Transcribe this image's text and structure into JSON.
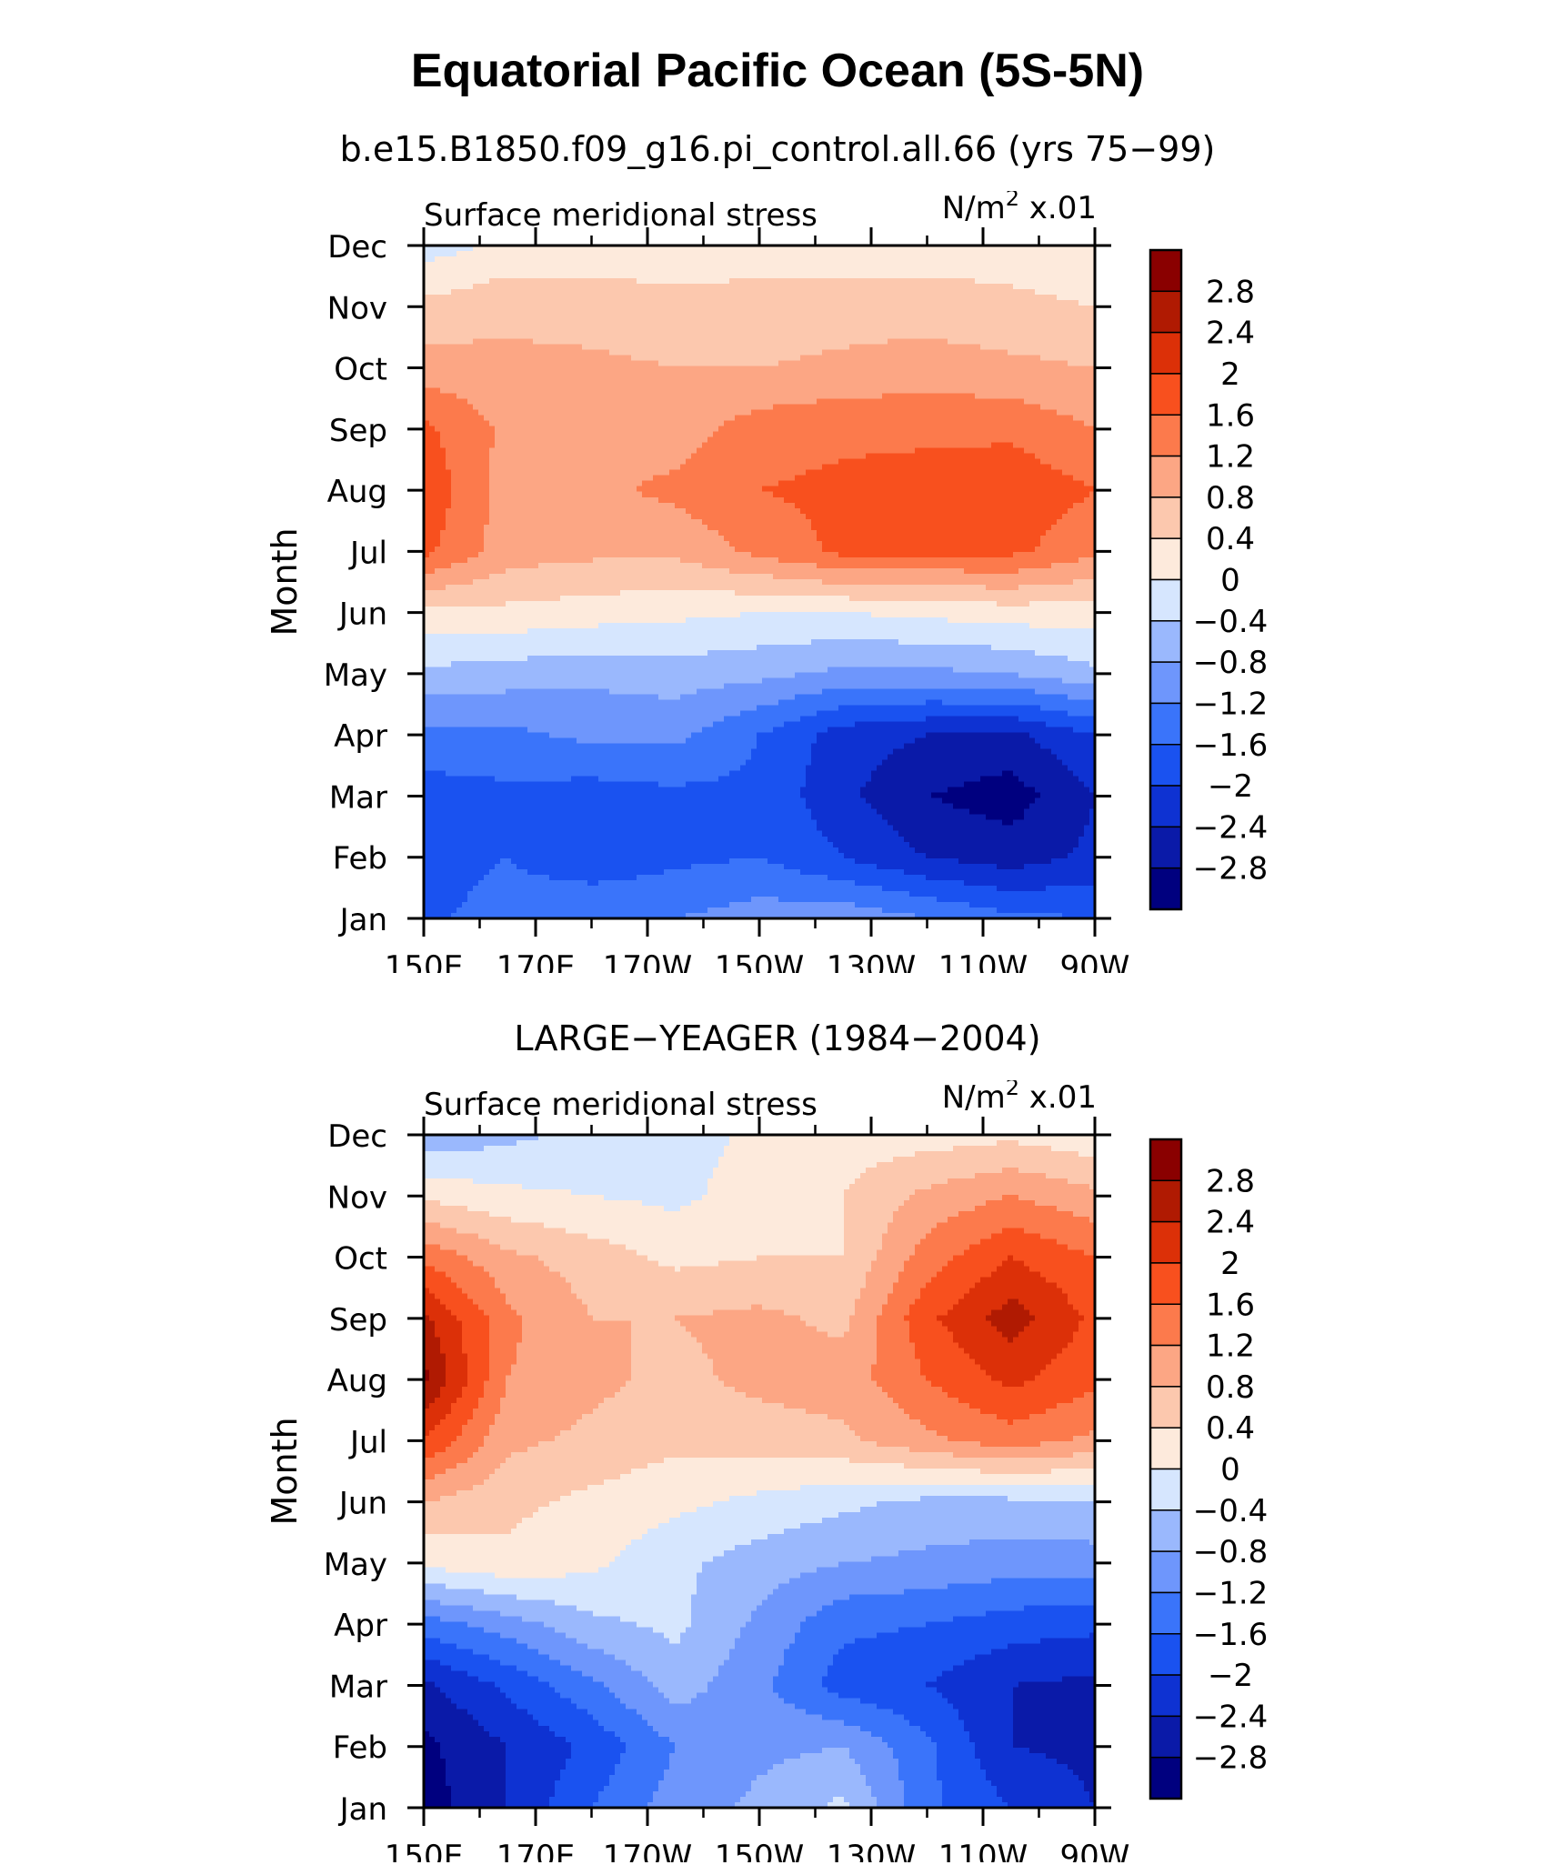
{
  "title": "Equatorial Pacific Ocean (5S-5N)",
  "chart_data": [
    {
      "type": "heatmap",
      "title": "b.e15.B1850.f09_g16.pi_control.all.66 (yrs 75−99)",
      "left_string": "Surface meridional stress",
      "units": "N/m² x.01",
      "units_base": "N/m",
      "units_sup": "2",
      "units_suffix": " x.01",
      "ylabel": "Month",
      "x_ticks": [
        "150E",
        "170E",
        "170W",
        "150W",
        "130W",
        "110W",
        "90W"
      ],
      "x_values": [
        150,
        170,
        190,
        210,
        230,
        250,
        270
      ],
      "y_ticks": [
        "Jan",
        "Feb",
        "Mar",
        "Apr",
        "May",
        "Jun",
        "Jul",
        "Aug",
        "Sep",
        "Oct",
        "Nov",
        "Dec"
      ],
      "colorbar_labels": [
        "2.8",
        "2.4",
        "2",
        "1.6",
        "1.2",
        "0.8",
        "0.4",
        "0",
        "−0.4",
        "−0.8",
        "−1.2",
        "−1.6",
        "−2",
        "−2.4",
        "−2.8"
      ],
      "levels": [
        -2.8,
        -2.4,
        -2.0,
        -1.6,
        -1.2,
        -0.8,
        -0.4,
        0,
        0.4,
        0.8,
        1.2,
        1.6,
        2.0,
        2.4,
        2.8
      ],
      "grid": [
        [
          -1.7,
          -1.4,
          -1.2,
          -1.2,
          -1.0,
          -0.9,
          -1.2,
          -1.5,
          -1.6
        ],
        [
          -1.8,
          -1.6,
          -1.9,
          -1.7,
          -1.6,
          -2.0,
          -2.4,
          -2.6,
          -2.3
        ],
        [
          -1.8,
          -1.7,
          -1.8,
          -1.7,
          -1.7,
          -2.3,
          -2.8,
          -3.0,
          -2.4
        ],
        [
          -1.3,
          -1.3,
          -1.1,
          -1.1,
          -1.6,
          -2.2,
          -2.4,
          -2.5,
          -2.0
        ],
        [
          -0.5,
          -0.6,
          -0.7,
          -0.6,
          -0.7,
          -0.9,
          -0.9,
          -0.8,
          -0.5
        ],
        [
          0.3,
          0.3,
          0.2,
          0.1,
          0.0,
          0.0,
          0.1,
          0.2,
          0.2
        ],
        [
          1.7,
          1.0,
          0.9,
          0.9,
          1.3,
          1.7,
          1.7,
          1.7,
          1.3
        ],
        [
          1.9,
          1.0,
          1.1,
          1.3,
          1.6,
          1.7,
          1.8,
          1.9,
          1.6
        ],
        [
          1.7,
          1.1,
          1.0,
          1.0,
          1.4,
          1.5,
          1.5,
          1.5,
          1.2
        ],
        [
          1.0,
          0.9,
          0.9,
          0.8,
          0.8,
          0.9,
          1.0,
          0.9,
          0.8
        ],
        [
          0.5,
          0.7,
          0.6,
          0.5,
          0.5,
          0.6,
          0.6,
          0.5,
          0.4
        ],
        [
          -0.2,
          0.1,
          0.2,
          0.2,
          0.3,
          0.2,
          0.2,
          0.2,
          0.1
        ]
      ]
    },
    {
      "type": "heatmap",
      "title": "LARGE−YEAGER (1984−2004)",
      "left_string": "Surface meridional stress",
      "units": "N/m² x.01",
      "units_base": "N/m",
      "units_sup": "2",
      "units_suffix": " x.01",
      "ylabel": "Month",
      "x_ticks": [
        "150E",
        "170E",
        "170W",
        "150W",
        "130W",
        "110W",
        "90W"
      ],
      "x_values": [
        150,
        170,
        190,
        210,
        230,
        250,
        270
      ],
      "y_ticks": [
        "Jan",
        "Feb",
        "Mar",
        "Apr",
        "May",
        "Jun",
        "Jul",
        "Aug",
        "Sep",
        "Oct",
        "Nov",
        "Dec"
      ],
      "colorbar_labels": [
        "2.8",
        "2.4",
        "2",
        "1.6",
        "1.2",
        "0.8",
        "0.4",
        "0",
        "−0.4",
        "−0.8",
        "−1.2",
        "−1.6",
        "−2",
        "−2.4",
        "−2.8"
      ],
      "levels": [
        -2.8,
        -2.4,
        -2.0,
        -1.6,
        -1.2,
        -0.8,
        -0.4,
        0,
        0.4,
        0.8,
        1.2,
        1.6,
        2.0,
        2.4,
        2.8
      ],
      "grid": [
        [
          -3.0,
          -2.4,
          -1.6,
          -1.0,
          -0.7,
          -0.3,
          -1.5,
          -2.0,
          -2.4
        ],
        [
          -2.9,
          -2.4,
          -1.9,
          -1.2,
          -0.9,
          -0.8,
          -1.5,
          -2.4,
          -2.5
        ],
        [
          -2.5,
          -1.9,
          -1.3,
          -0.6,
          -1.1,
          -1.8,
          -2.0,
          -2.4,
          -2.5
        ],
        [
          -1.4,
          -1.0,
          -0.5,
          -0.3,
          -0.9,
          -1.5,
          -1.6,
          -1.8,
          -1.9
        ],
        [
          0.1,
          0.3,
          0.1,
          -0.3,
          -0.6,
          -0.8,
          -0.9,
          -1.0,
          -1.0
        ],
        [
          0.8,
          0.5,
          0.3,
          0.1,
          -0.1,
          -0.3,
          -0.5,
          -0.5,
          -0.4
        ],
        [
          2.0,
          0.9,
          0.7,
          0.5,
          0.6,
          0.7,
          1.1,
          1.4,
          1.1
        ],
        [
          2.9,
          1.2,
          0.9,
          0.7,
          0.9,
          1.0,
          1.6,
          2.1,
          1.7
        ],
        [
          2.5,
          1.3,
          0.8,
          0.8,
          0.9,
          0.7,
          1.9,
          2.6,
          1.9
        ],
        [
          1.5,
          0.9,
          0.6,
          0.3,
          0.4,
          0.4,
          1.4,
          2.0,
          1.6
        ],
        [
          0.3,
          0.1,
          0.0,
          -0.1,
          0.2,
          0.4,
          0.9,
          1.2,
          0.9
        ],
        [
          -0.7,
          -0.5,
          -0.3,
          -0.2,
          0.1,
          0.2,
          0.2,
          0.3,
          0.1
        ]
      ]
    }
  ]
}
